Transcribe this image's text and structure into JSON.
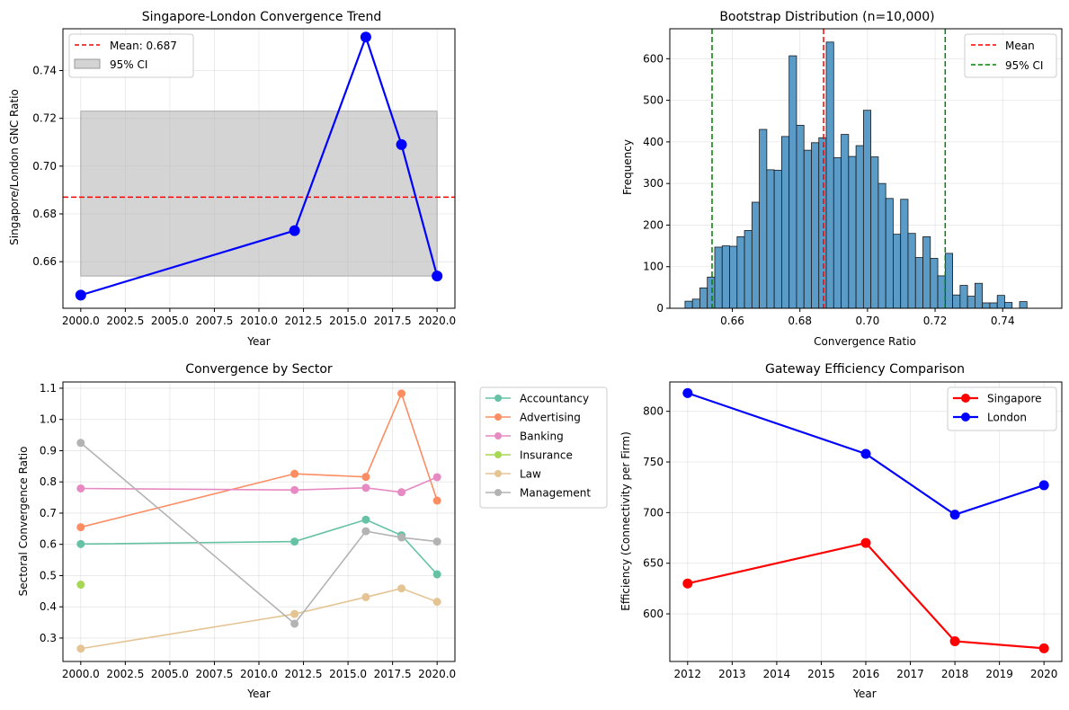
{
  "chart_data": [
    {
      "type": "line",
      "title": "Singapore-London Convergence Trend",
      "xlabel": "Year",
      "ylabel": "Singapore/London GNC Ratio",
      "xlim": [
        1999.0,
        2021.0
      ],
      "ylim": [
        0.6405,
        0.7575
      ],
      "xticks": [
        "2000.0",
        "2002.5",
        "2005.0",
        "2007.5",
        "2010.0",
        "2012.5",
        "2015.0",
        "2017.5",
        "2020.0"
      ],
      "xtick_values": [
        2000,
        2002.5,
        2005,
        2007.5,
        2010,
        2012.5,
        2015,
        2017.5,
        2020
      ],
      "yticks": [
        "0.66",
        "0.68",
        "0.70",
        "0.72",
        "0.74"
      ],
      "ytick_values": [
        0.66,
        0.68,
        0.7,
        0.72,
        0.74
      ],
      "grid": true,
      "legend_position": "top-left",
      "x": [
        2000,
        2012,
        2016,
        2018,
        2020
      ],
      "y": [
        0.646,
        0.673,
        0.754,
        0.709,
        0.654
      ],
      "line_color": "#0000ff",
      "mean": 0.687,
      "mean_label": "Mean: 0.687",
      "mean_color": "#ff0000",
      "ci": [
        0.654,
        0.723
      ],
      "ci_label": "95% CI",
      "ci_color": "#b0b0b0"
    },
    {
      "type": "histogram",
      "title": "Bootstrap Distribution (n=10,000)",
      "xlabel": "Convergence Ratio",
      "ylabel": "Frequency",
      "xlim": [
        0.6415,
        0.7575
      ],
      "ylim": [
        0,
        672
      ],
      "xticks": [
        "0.66",
        "0.68",
        "0.70",
        "0.72",
        "0.74"
      ],
      "xtick_values": [
        0.66,
        0.68,
        0.7,
        0.72,
        0.74
      ],
      "yticks": [
        "0",
        "100",
        "200",
        "300",
        "400",
        "500",
        "600"
      ],
      "ytick_values": [
        0,
        100,
        200,
        300,
        400,
        500,
        600
      ],
      "grid": true,
      "legend_position": "top-right",
      "bin_start": 0.646,
      "bin_width": 0.0022,
      "counts": [
        17,
        22,
        49,
        75,
        147,
        150,
        149,
        172,
        187,
        255,
        430,
        333,
        332,
        413,
        607,
        440,
        380,
        398,
        410,
        640,
        362,
        418,
        365,
        391,
        476,
        364,
        300,
        264,
        178,
        262,
        180,
        122,
        172,
        120,
        78,
        132,
        32,
        55,
        29,
        60,
        13,
        13,
        31,
        14,
        0,
        16,
        0,
        0,
        0,
        0
      ],
      "bar_color": "#5b9bc8",
      "mean": 0.687,
      "mean_label": "Mean",
      "mean_color": "#ff0000",
      "ci": [
        0.654,
        0.723
      ],
      "ci_label": "95% CI",
      "ci_color": "#008000"
    },
    {
      "type": "line",
      "title": "Convergence by Sector",
      "xlabel": "Year",
      "ylabel": "Sectoral Convergence Ratio",
      "xlim": [
        1999.0,
        2021.0
      ],
      "ylim": [
        0.225,
        1.12
      ],
      "xticks": [
        "2000.0",
        "2002.5",
        "2005.0",
        "2007.5",
        "2010.0",
        "2012.5",
        "2015.0",
        "2017.5",
        "2020.0"
      ],
      "xtick_values": [
        2000,
        2002.5,
        2005,
        2007.5,
        2010,
        2012.5,
        2015,
        2017.5,
        2020
      ],
      "yticks": [
        "0.3",
        "0.4",
        "0.5",
        "0.6",
        "0.7",
        "0.8",
        "0.9",
        "1.0",
        "1.1"
      ],
      "ytick_values": [
        0.3,
        0.4,
        0.5,
        0.6,
        0.7,
        0.8,
        0.9,
        1.0,
        1.1
      ],
      "grid": true,
      "legend_position": "outside-right",
      "series": [
        {
          "name": "Accountancy",
          "color": "#66c2a5",
          "x": [
            2000,
            2012,
            2016,
            2018,
            2020
          ],
          "y": [
            0.601,
            0.609,
            0.679,
            0.629,
            0.504
          ]
        },
        {
          "name": "Advertising",
          "color": "#fc8d62",
          "x": [
            2000,
            2012,
            2016,
            2018,
            2020
          ],
          "y": [
            0.655,
            0.826,
            0.816,
            1.083,
            0.74
          ]
        },
        {
          "name": "Banking",
          "color": "#e78ac3",
          "x": [
            2000,
            2012,
            2016,
            2018,
            2020
          ],
          "y": [
            0.779,
            0.774,
            0.781,
            0.767,
            0.815
          ]
        },
        {
          "name": "Insurance",
          "color": "#a6d854",
          "x": [
            2000
          ],
          "y": [
            0.471
          ]
        },
        {
          "name": "Law",
          "color": "#e5c494",
          "x": [
            2000,
            2012,
            2016,
            2018,
            2020
          ],
          "y": [
            0.266,
            0.377,
            0.431,
            0.459,
            0.416
          ]
        },
        {
          "name": "Management",
          "color": "#b3b3b3",
          "x": [
            2000,
            2012,
            2016,
            2018,
            2020
          ],
          "y": [
            0.925,
            0.346,
            0.642,
            0.622,
            0.609
          ]
        }
      ]
    },
    {
      "type": "line",
      "title": "Gateway Efficiency Comparison",
      "xlabel": "Year",
      "ylabel": "Efficiency (Connectivity per Firm)",
      "xlim": [
        2011.6,
        2020.4
      ],
      "ylim": [
        553,
        829
      ],
      "xticks": [
        "2012",
        "2013",
        "2014",
        "2015",
        "2016",
        "2017",
        "2018",
        "2019",
        "2020"
      ],
      "xtick_values": [
        2012,
        2013,
        2014,
        2015,
        2016,
        2017,
        2018,
        2019,
        2020
      ],
      "yticks": [
        "600",
        "650",
        "700",
        "750",
        "800"
      ],
      "ytick_values": [
        600,
        650,
        700,
        750,
        800
      ],
      "grid": true,
      "legend_position": "top-right",
      "series": [
        {
          "name": "Singapore",
          "color": "#ff0000",
          "x": [
            2012,
            2016,
            2018,
            2020
          ],
          "y": [
            630,
            670,
            573,
            566
          ]
        },
        {
          "name": "London",
          "color": "#0000ff",
          "x": [
            2012,
            2016,
            2018,
            2020
          ],
          "y": [
            818,
            758,
            698,
            727
          ]
        }
      ]
    }
  ]
}
